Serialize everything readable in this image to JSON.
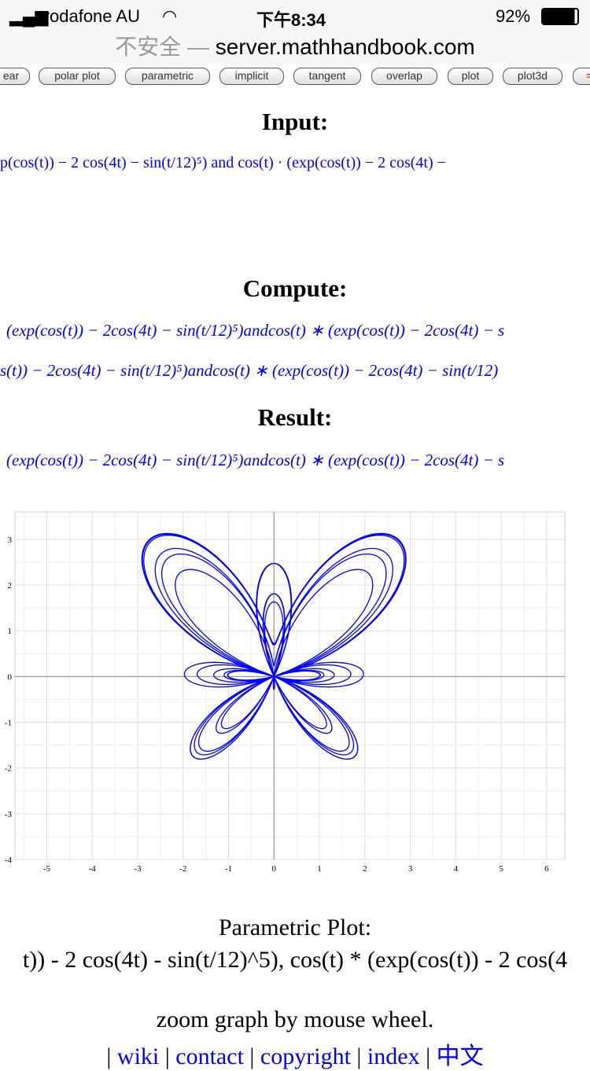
{
  "status": {
    "carrier": "vodafone AU",
    "time": "下午8:34",
    "battery": "92%"
  },
  "urlbar": {
    "insecure": "不安全 —",
    "domain": "server.mathhandbook.com"
  },
  "tabs": [
    "ear",
    "polar plot",
    "parametric",
    "implicit",
    "tangent",
    "overlap",
    "plot",
    "plot3d",
    "="
  ],
  "input": {
    "heading": "Input:",
    "expr": "p(cos(t)) − 2 cos(4t) − sin(t/12)⁵)  and  cos(t) · (exp(cos(t)) − 2 cos(4t) −"
  },
  "compute": {
    "heading": "Compute:",
    "line1": "(exp(cos(t)) − 2cos(4t) − sin(t/12)⁵)andcos(t) ∗ (exp(cos(t)) − 2cos(4t) − s",
    "line2": "s(t)) − 2cos(4t) − sin(t/12)⁵)andcos(t) ∗ (exp(cos(t)) − 2cos(4t) − sin(t/12)"
  },
  "result": {
    "heading": "Result:",
    "line1": "(exp(cos(t)) − 2cos(4t) − sin(t/12)⁵)andcos(t) ∗ (exp(cos(t)) − 2cos(4t) − s"
  },
  "chart_data": {
    "type": "line",
    "parametric": true,
    "x_expr": "sin(t) * (exp(cos(t)) - 2 cos(4t) - sin(t/12)^5)",
    "y_expr": "cos(t) * (exp(cos(t)) - 2 cos(4t) - sin(t/12)^5)",
    "xlim": [
      -5.7,
      6.4
    ],
    "ylim": [
      -4,
      3.6
    ],
    "xticks": [
      -5,
      -4,
      -3,
      -2,
      -1,
      0,
      1,
      2,
      3,
      4,
      5,
      6
    ],
    "yticks": [
      3,
      2,
      1,
      0,
      -1,
      -2,
      -3,
      -4
    ],
    "grid": true,
    "color": "#0000ff"
  },
  "caption": {
    "title": "Parametric Plot:",
    "expr": "t)) - 2 cos(4t) - sin(t/12)^5), cos(t) * (exp(cos(t)) - 2 cos(4",
    "hint": "zoom graph by mouse wheel."
  },
  "footer_links": [
    "wiki",
    "contact",
    "copyright",
    "index",
    "中文"
  ]
}
